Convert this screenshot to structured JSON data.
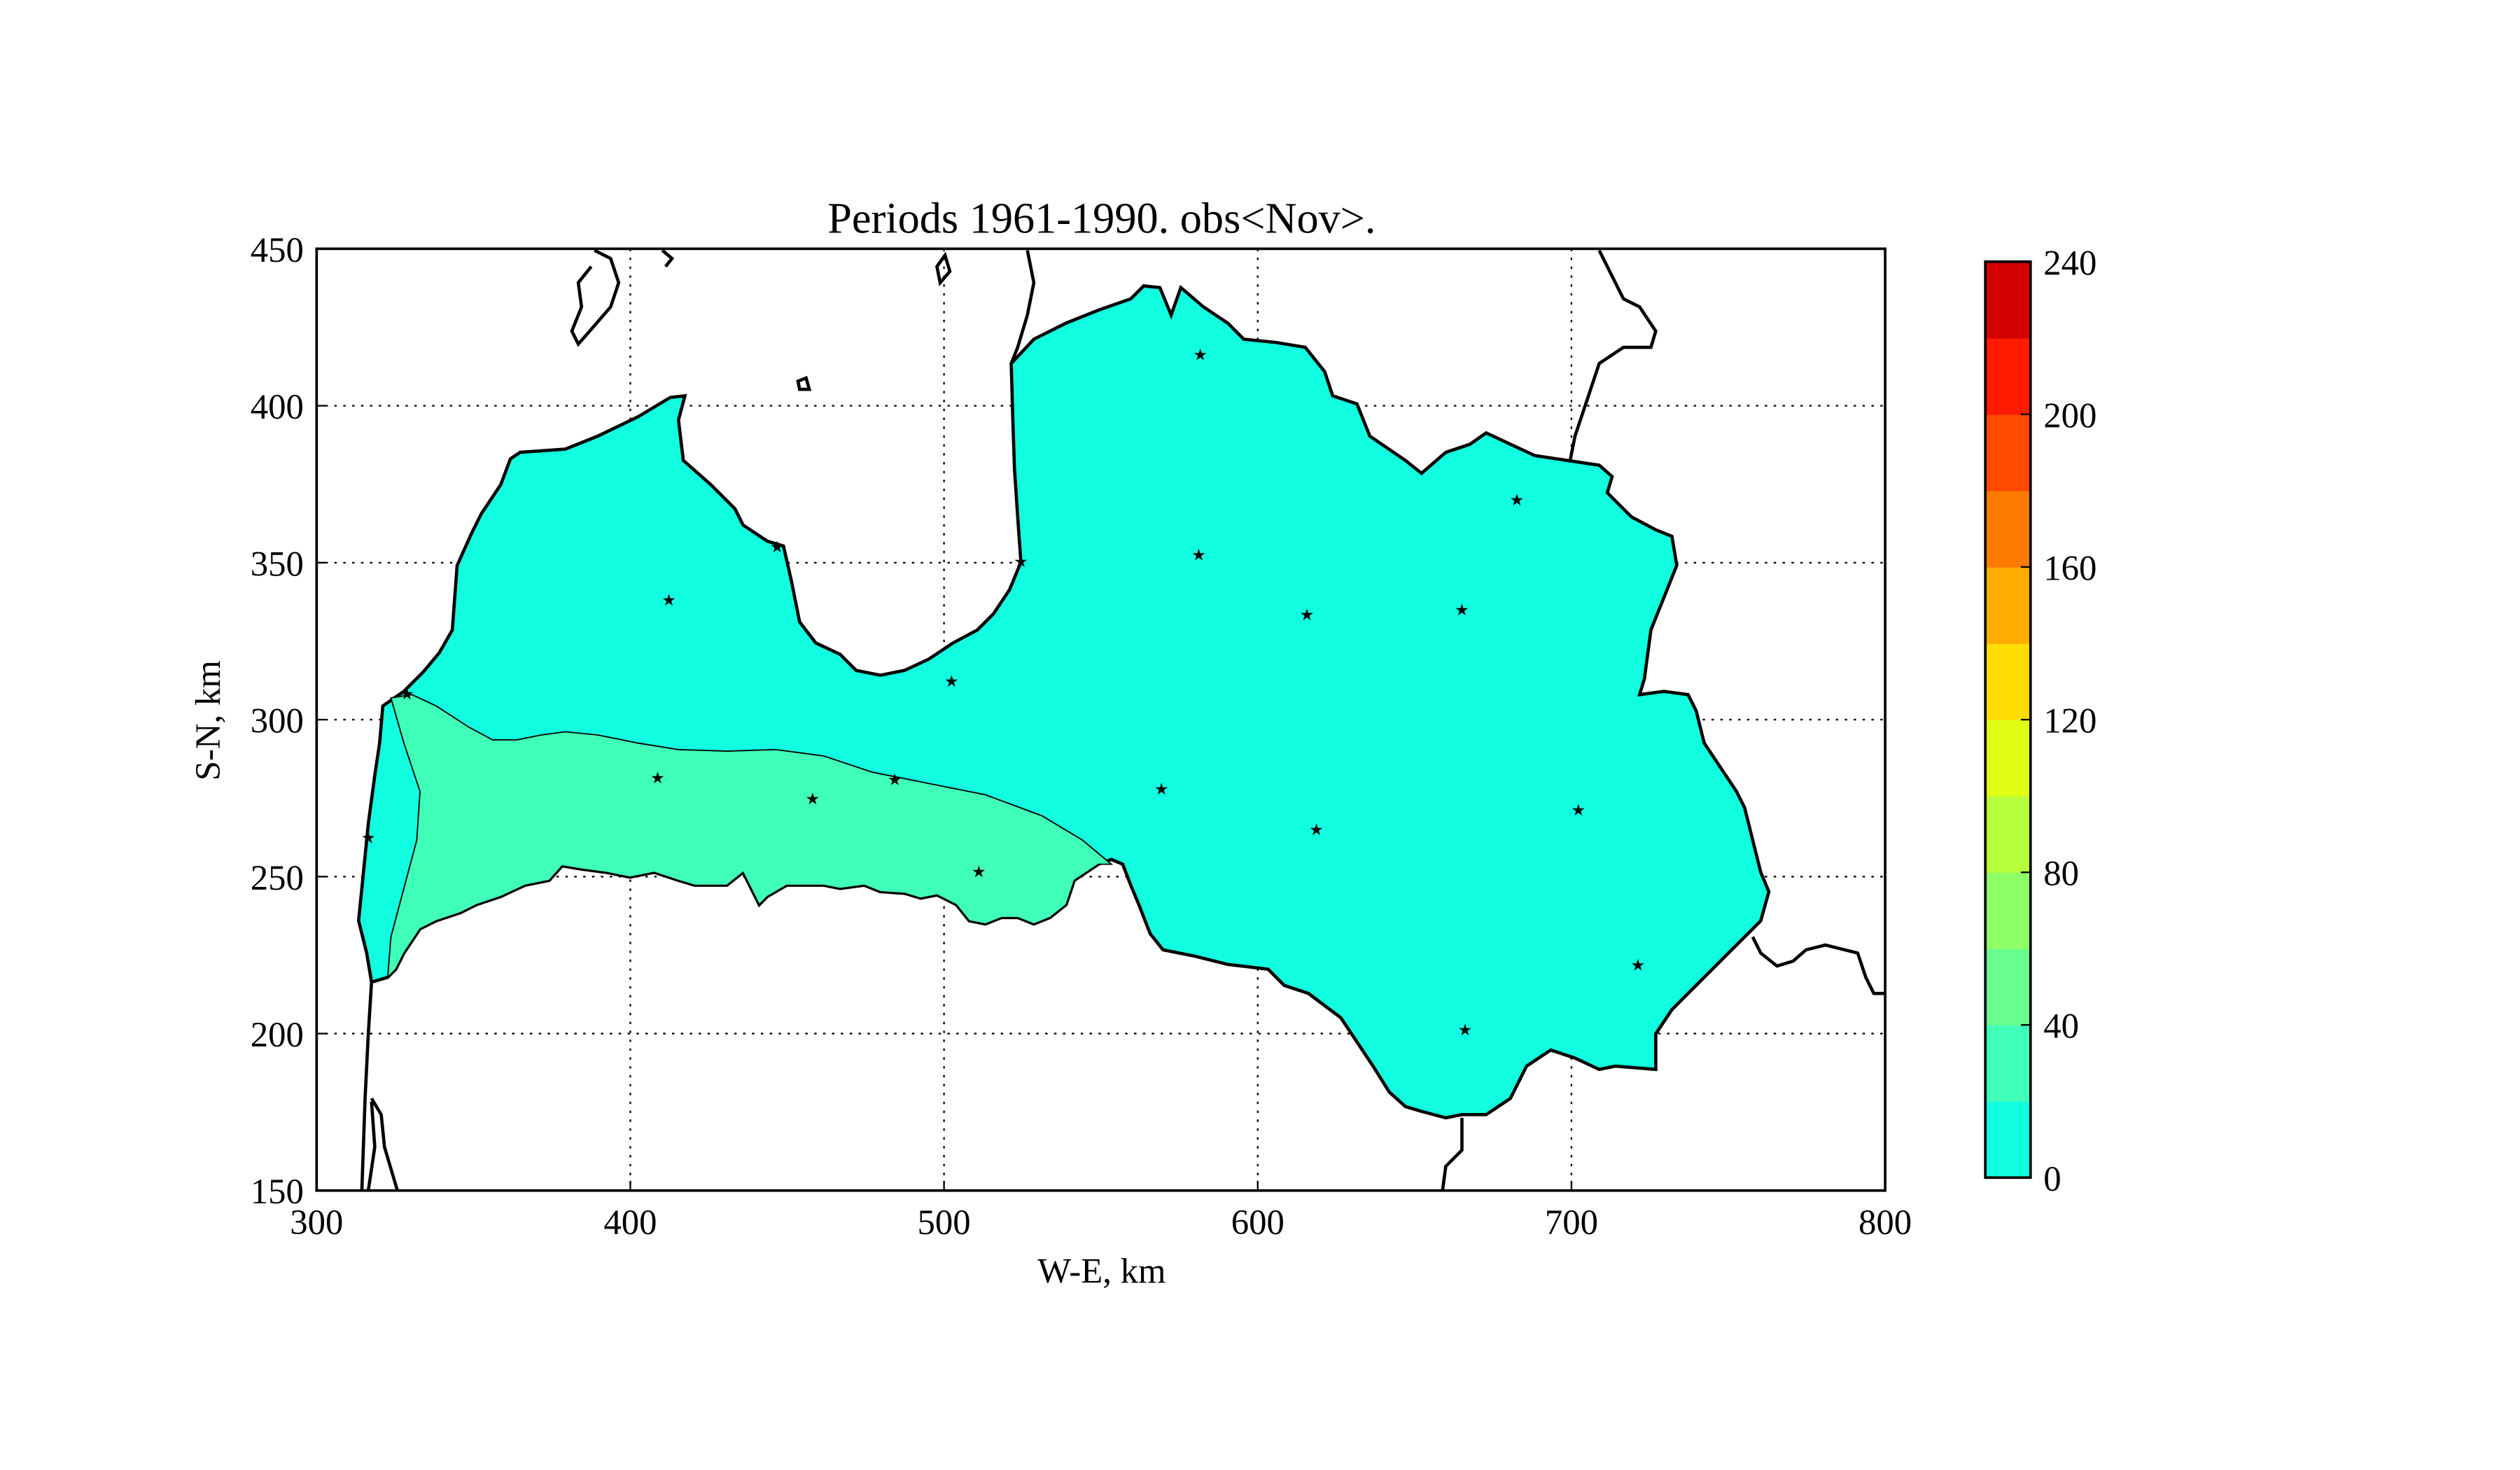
{
  "chart_data": {
    "type": "heatmap",
    "subtype": "filled-contour map",
    "title": "Periods 1961-1990. obs<Nov>.",
    "xlabel": "W-E, km",
    "ylabel": "S-N, km",
    "xlim": [
      300,
      800
    ],
    "ylim": [
      150,
      450
    ],
    "xticks": [
      300,
      400,
      500,
      600,
      700,
      800
    ],
    "yticks": [
      150,
      200,
      250,
      300,
      350,
      400,
      450
    ],
    "grid": true,
    "colorbar": {
      "levels": [
        0,
        20,
        40,
        60,
        80,
        100,
        120,
        140,
        160,
        180,
        200,
        220,
        240
      ],
      "ticks": [
        0,
        40,
        80,
        120,
        160,
        200,
        240
      ],
      "colors": [
        "#11ffe0",
        "#40ffb8",
        "#68ff8f",
        "#8fff66",
        "#b8ff3d",
        "#e0ff15",
        "#ffdd00",
        "#ffac00",
        "#ff7b00",
        "#ff4a00",
        "#ff1a00",
        "#d40000"
      ],
      "placement": "right"
    },
    "regions": [
      {
        "name": "0-20",
        "color": "#11ffe0"
      },
      {
        "name": "20-40",
        "color": "#40ffb8"
      }
    ],
    "stations": [
      [
        581.7,
        416.6
      ],
      [
        412.3,
        338.4
      ],
      [
        446.8,
        355.4
      ],
      [
        524.5,
        350.7
      ],
      [
        581.2,
        352.8
      ],
      [
        615.7,
        333.7
      ],
      [
        665.1,
        335.3
      ],
      [
        682.6,
        370.3
      ],
      [
        502.4,
        312.6
      ],
      [
        328.8,
        308.5
      ],
      [
        316.5,
        262.7
      ],
      [
        408.7,
        281.8
      ],
      [
        458.1,
        275.1
      ],
      [
        484.3,
        281.2
      ],
      [
        511.1,
        251.9
      ],
      [
        569.3,
        278.2
      ],
      [
        618.7,
        265.3
      ],
      [
        702.2,
        271.5
      ],
      [
        721.2,
        222.1
      ],
      [
        666.1,
        201.5
      ]
    ]
  }
}
